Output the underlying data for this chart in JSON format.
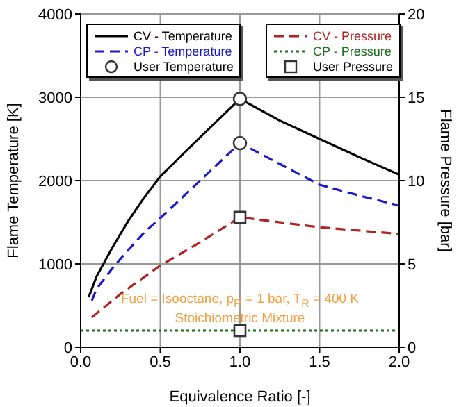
{
  "chart_data": {
    "type": "line",
    "xlabel": "Equivalence Ratio [-]",
    "ylabel": "Flame Temperature [K]",
    "y2label": "Flame Pressure [bar]",
    "xlim": [
      0,
      2
    ],
    "xticks": [
      {
        "value": 0,
        "label": "0.0"
      },
      {
        "value": 0.5,
        "label": "0.5"
      },
      {
        "value": 1,
        "label": "1.0"
      },
      {
        "value": 1.5,
        "label": "1.5"
      },
      {
        "value": 2,
        "label": "2.0"
      }
    ],
    "ylim": [
      0,
      4000
    ],
    "yticks": [
      0,
      1000,
      2000,
      3000,
      4000
    ],
    "y2lim": [
      0,
      20
    ],
    "y2ticks": [
      0,
      5,
      10,
      15,
      20
    ],
    "grid": true,
    "legend": "top",
    "annotations": [
      "Fuel = Isooctane, p$_{R}$ = 1 bar, T$_{R}$ = 400 K",
      "Stoichiometric Mixture"
    ],
    "series": [
      {
        "name": "CV - Temperature",
        "color": "#000000",
        "line_style": "solid",
        "marker": "none",
        "x": [
          0.05,
          0.1,
          0.2,
          0.3,
          0.4,
          0.5,
          0.75,
          1.0,
          1.25,
          1.5,
          1.75,
          2.0
        ],
        "values": [
          600,
          850,
          1200,
          1520,
          1800,
          2050,
          2520,
          2980,
          2720,
          2500,
          2280,
          2070
        ]
      },
      {
        "name": "CP - Temperature",
        "color": "#1a1acc",
        "line_style": "dashed",
        "marker": "none",
        "x": [
          0.07,
          0.1,
          0.2,
          0.3,
          0.4,
          0.5,
          0.75,
          1.0,
          1.25,
          1.5,
          1.75,
          2.0
        ],
        "values": [
          560,
          700,
          950,
          1170,
          1380,
          1550,
          2000,
          2450,
          2200,
          1950,
          1820,
          1700
        ]
      },
      {
        "name": "User Temperature",
        "type": "scatter",
        "color": "#333333",
        "marker": "circle",
        "x": [
          1.0,
          1.0
        ],
        "values": [
          2980,
          2450
        ]
      },
      {
        "name": "CV - Pressure",
        "axis": "y2",
        "color": "#b22222",
        "line_style": "dashed",
        "marker": "none",
        "x": [
          0.07,
          0.25,
          0.5,
          0.75,
          1.0,
          1.5,
          2.0
        ],
        "values": [
          1.8,
          3.2,
          4.9,
          6.3,
          7.8,
          7.2,
          6.8
        ]
      },
      {
        "name": "CP - Pressure",
        "axis": "y2",
        "color": "#1a6e1a",
        "line_style": "dotted",
        "marker": "none",
        "x": [
          0,
          2.0
        ],
        "values": [
          1,
          1
        ]
      },
      {
        "name": "User Pressure",
        "type": "scatter",
        "axis": "y2",
        "color": "#333333",
        "marker": "square",
        "x": [
          1.0,
          1.0
        ],
        "values": [
          7.8,
          1
        ]
      }
    ]
  }
}
